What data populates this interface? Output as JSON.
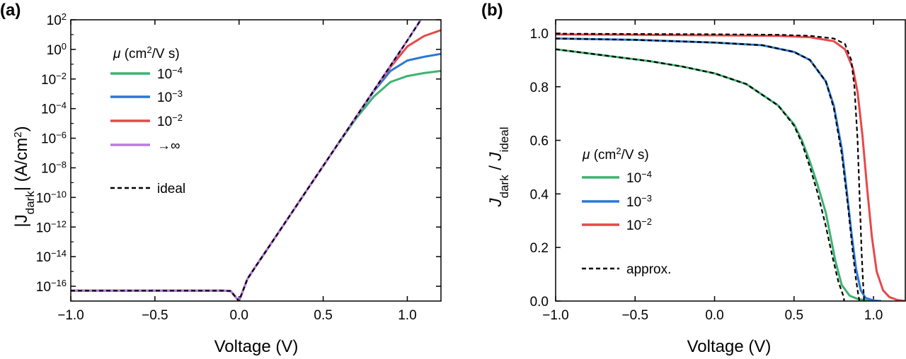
{
  "chart_data": [
    {
      "panel": "(a)",
      "type": "line",
      "xlabel": "Voltage (V)",
      "ylabel_parts": [
        "|J",
        "dark",
        "| (A/cm",
        "2",
        ")"
      ],
      "xlim": [
        -1.0,
        1.2
      ],
      "ylim_log10": [
        -17,
        2
      ],
      "y_scale": "log",
      "x_ticks": [
        -1.0,
        -0.5,
        0.0,
        0.5,
        1.0
      ],
      "x_tick_labels": [
        "−1.0",
        "−0.5",
        "0.0",
        "0.5",
        "1.0"
      ],
      "y_tick_exponents": [
        2,
        0,
        -2,
        -4,
        -6,
        -8,
        -10,
        -12,
        -14,
        -16
      ],
      "y_tick_exponent_labels": [
        "2",
        "0",
        "−2",
        "−4",
        "−6",
        "−8",
        "−10",
        "−12",
        "−14",
        "−16"
      ],
      "y_tick_base": "10",
      "legend": {
        "title_parts": [
          "μ",
          " (cm",
          "2",
          "/V s)"
        ],
        "position": "top-left",
        "entries": [
          {
            "base": "10",
            "exp": "−4",
            "color": "#3cb371"
          },
          {
            "base": "10",
            "exp": "−3",
            "color": "#2a78d6"
          },
          {
            "base": "10",
            "exp": "−2",
            "color": "#e8474a"
          },
          {
            "label": "→∞",
            "color": "#b77ce6"
          }
        ],
        "dashed_label": "ideal"
      },
      "series": [
        {
          "name": "10^-4",
          "color": "#3cb371",
          "x": [
            -1.0,
            -0.5,
            -0.1,
            -0.05,
            0.0,
            0.05,
            0.1,
            0.2,
            0.3,
            0.4,
            0.5,
            0.6,
            0.7,
            0.8,
            0.9,
            1.0,
            1.1,
            1.2
          ],
          "log10_y": [
            -16.3,
            -16.3,
            -16.3,
            -16.32,
            -17.0,
            -15.5,
            -14.64,
            -12.95,
            -11.26,
            -9.56,
            -7.87,
            -6.2,
            -4.6,
            -3.2,
            -2.2,
            -1.8,
            -1.6,
            -1.45
          ]
        },
        {
          "name": "10^-3",
          "color": "#2a78d6",
          "x": [
            -1.0,
            -0.5,
            -0.1,
            -0.05,
            0.0,
            0.05,
            0.1,
            0.2,
            0.3,
            0.4,
            0.5,
            0.6,
            0.7,
            0.8,
            0.9,
            1.0,
            1.1,
            1.2
          ],
          "log10_y": [
            -16.3,
            -16.3,
            -16.3,
            -16.32,
            -17.0,
            -15.5,
            -14.64,
            -12.95,
            -11.26,
            -9.56,
            -7.87,
            -6.18,
            -4.5,
            -2.85,
            -1.45,
            -0.75,
            -0.5,
            -0.3
          ]
        },
        {
          "name": "10^-2",
          "color": "#e8474a",
          "x": [
            -1.0,
            -0.5,
            -0.1,
            -0.05,
            0.0,
            0.05,
            0.1,
            0.2,
            0.3,
            0.4,
            0.5,
            0.6,
            0.7,
            0.8,
            0.9,
            1.0,
            1.1,
            1.2
          ],
          "log10_y": [
            -16.3,
            -16.3,
            -16.3,
            -16.32,
            -17.0,
            -15.5,
            -14.64,
            -12.95,
            -11.26,
            -9.56,
            -7.87,
            -6.18,
            -4.49,
            -2.8,
            -1.2,
            0.2,
            0.9,
            1.3
          ]
        },
        {
          "name": "→∞",
          "color": "#b77ce6",
          "x": [
            -1.0,
            -0.5,
            -0.1,
            -0.05,
            0.0,
            0.05,
            0.1,
            0.2,
            0.3,
            0.4,
            0.5,
            0.6,
            0.7,
            0.8,
            0.9,
            1.0,
            1.08
          ],
          "log10_y": [
            -16.3,
            -16.3,
            -16.3,
            -16.32,
            -17.0,
            -15.5,
            -14.64,
            -12.95,
            -11.26,
            -9.56,
            -7.87,
            -6.18,
            -4.49,
            -2.8,
            -1.1,
            0.6,
            2.0
          ]
        }
      ],
      "dashed_series": [
        {
          "name": "ideal",
          "color": "#000000",
          "x": [
            -1.0,
            -0.5,
            -0.1,
            -0.05,
            0.0,
            0.05,
            0.1,
            0.2,
            0.3,
            0.4,
            0.5,
            0.6,
            0.7,
            0.8,
            0.9,
            1.0,
            1.08
          ],
          "log10_y": [
            -16.3,
            -16.3,
            -16.3,
            -16.32,
            -17.0,
            -15.5,
            -14.64,
            -12.95,
            -11.26,
            -9.56,
            -7.87,
            -6.18,
            -4.49,
            -2.8,
            -1.1,
            0.6,
            2.0
          ]
        }
      ]
    },
    {
      "panel": "(b)",
      "type": "line",
      "xlabel": "Voltage (V)",
      "ylabel_parts": [
        "J",
        "dark",
        " / ",
        "J",
        "ideal"
      ],
      "xlim": [
        -1.0,
        1.2
      ],
      "ylim": [
        0.0,
        1.05
      ],
      "x_ticks": [
        -1.0,
        -0.5,
        0.0,
        0.5,
        1.0
      ],
      "x_tick_labels": [
        "−1.0",
        "−0.5",
        "0.0",
        "0.5",
        "1.0"
      ],
      "y_ticks": [
        0.0,
        0.2,
        0.4,
        0.6,
        0.8,
        1.0
      ],
      "y_tick_labels": [
        "0.0",
        "0.2",
        "0.4",
        "0.6",
        "0.8",
        "1.0"
      ],
      "legend": {
        "title_parts": [
          "μ",
          " (cm",
          "2",
          "/V s)"
        ],
        "position": "center-left",
        "entries": [
          {
            "base": "10",
            "exp": "−4",
            "color": "#3cb371"
          },
          {
            "base": "10",
            "exp": "−3",
            "color": "#2a78d6"
          },
          {
            "base": "10",
            "exp": "−2",
            "color": "#e8474a"
          }
        ],
        "dashed_label": "approx."
      },
      "series": [
        {
          "name": "10^-4",
          "color": "#3cb371",
          "x": [
            -1.0,
            -0.8,
            -0.6,
            -0.4,
            -0.2,
            0.0,
            0.2,
            0.4,
            0.5,
            0.55,
            0.6,
            0.65,
            0.7,
            0.73,
            0.76,
            0.8,
            0.85,
            0.9,
            0.95,
            1.0
          ],
          "y": [
            0.94,
            0.925,
            0.91,
            0.895,
            0.875,
            0.85,
            0.81,
            0.73,
            0.66,
            0.6,
            0.52,
            0.43,
            0.33,
            0.24,
            0.15,
            0.06,
            0.02,
            0.008,
            0.003,
            0.0
          ]
        },
        {
          "name": "10^-3",
          "color": "#2a78d6",
          "x": [
            -1.0,
            -0.5,
            0.0,
            0.3,
            0.5,
            0.6,
            0.7,
            0.75,
            0.8,
            0.83,
            0.86,
            0.89,
            0.92,
            0.95,
            1.0,
            1.05
          ],
          "y": [
            0.98,
            0.975,
            0.965,
            0.955,
            0.93,
            0.9,
            0.82,
            0.73,
            0.57,
            0.42,
            0.26,
            0.12,
            0.04,
            0.012,
            0.002,
            0.0
          ]
        },
        {
          "name": "10^-2",
          "color": "#e8474a",
          "x": [
            -1.0,
            -0.5,
            0.0,
            0.4,
            0.6,
            0.75,
            0.82,
            0.87,
            0.9,
            0.93,
            0.96,
            0.99,
            1.02,
            1.06,
            1.1,
            1.15,
            1.2
          ],
          "y": [
            0.995,
            0.994,
            0.992,
            0.99,
            0.985,
            0.97,
            0.94,
            0.87,
            0.78,
            0.62,
            0.42,
            0.24,
            0.11,
            0.04,
            0.015,
            0.004,
            0.0
          ]
        }
      ],
      "dashed_series": [
        {
          "name": "approx 10^-4",
          "color": "#000000",
          "x": [
            -1.0,
            -0.8,
            -0.6,
            -0.4,
            -0.2,
            0.0,
            0.2,
            0.4,
            0.5,
            0.55,
            0.6,
            0.65,
            0.7,
            0.74,
            0.78,
            0.81,
            0.815,
            0.815
          ],
          "y": [
            0.94,
            0.925,
            0.91,
            0.895,
            0.875,
            0.85,
            0.81,
            0.73,
            0.655,
            0.59,
            0.5,
            0.4,
            0.28,
            0.17,
            0.07,
            0.02,
            0.005,
            0.0
          ]
        },
        {
          "name": "approx 10^-3",
          "color": "#000000",
          "x": [
            -1.0,
            -0.5,
            0.0,
            0.3,
            0.5,
            0.6,
            0.7,
            0.75,
            0.8,
            0.84,
            0.87,
            0.89,
            0.905,
            0.91,
            0.91
          ],
          "y": [
            0.98,
            0.975,
            0.965,
            0.955,
            0.93,
            0.9,
            0.82,
            0.72,
            0.55,
            0.35,
            0.18,
            0.08,
            0.02,
            0.005,
            0.0
          ]
        },
        {
          "name": "approx 10^-2",
          "color": "#000000",
          "x": [
            -1.0,
            -0.5,
            0.0,
            0.4,
            0.6,
            0.75,
            0.82,
            0.86,
            0.88,
            0.9,
            0.915,
            0.925,
            0.935,
            0.94,
            0.94
          ],
          "y": [
            0.998,
            0.997,
            0.996,
            0.994,
            0.99,
            0.98,
            0.96,
            0.9,
            0.8,
            0.6,
            0.35,
            0.18,
            0.06,
            0.01,
            0.0
          ]
        }
      ]
    }
  ]
}
